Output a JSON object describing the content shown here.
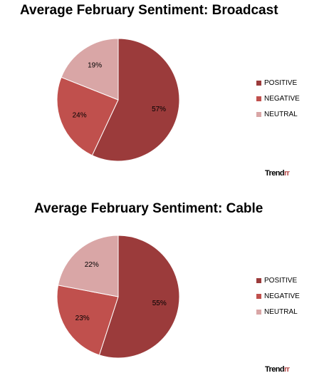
{
  "chart_data": [
    {
      "type": "pie",
      "title": "Average February Sentiment: Broadcast",
      "categories": [
        "POSITIVE",
        "NEGATIVE",
        "NEUTRAL"
      ],
      "values": [
        57,
        24,
        19
      ],
      "value_labels": [
        "57%",
        "24%",
        "19%"
      ],
      "colors": [
        "#9b3b3b",
        "#c0504d",
        "#d9a6a6"
      ],
      "legend_position": "right",
      "brand": "Trendrr"
    },
    {
      "type": "pie",
      "title": "Average February Sentiment: Cable",
      "categories": [
        "POSITIVE",
        "NEGATIVE",
        "NEUTRAL"
      ],
      "values": [
        55,
        23,
        22
      ],
      "value_labels": [
        "55%",
        "23%",
        "22%"
      ],
      "colors": [
        "#9b3b3b",
        "#c0504d",
        "#d9a6a6"
      ],
      "legend_position": "right",
      "brand": "Trendrr"
    }
  ]
}
